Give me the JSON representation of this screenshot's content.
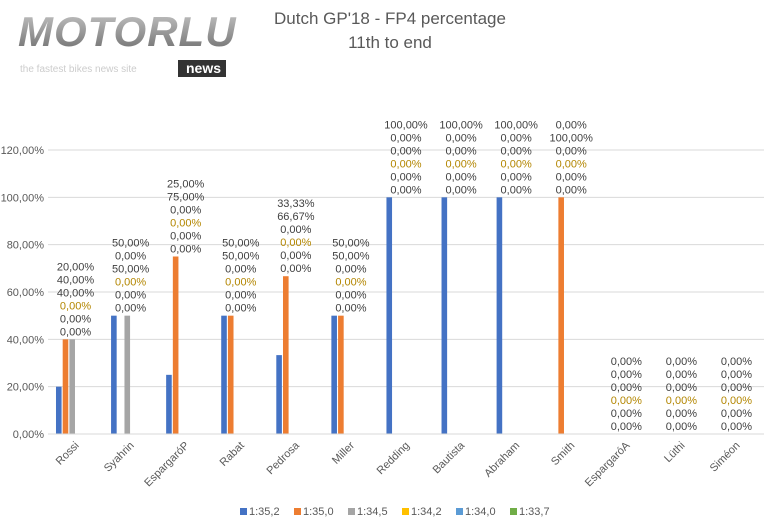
{
  "logo": {
    "text": "MOTORLU",
    "badge": "news",
    "tagline": "the fastest bikes news site"
  },
  "chart_data": {
    "type": "bar",
    "title": "Dutch GP'18 - FP4 percentage",
    "subtitle": "11th to end",
    "xlabel": "",
    "ylabel": "",
    "ylim": [
      0,
      120
    ],
    "yticks": [
      "0,00%",
      "20,00%",
      "40,00%",
      "60,00%",
      "80,00%",
      "100,00%",
      "120,00%"
    ],
    "grid": true,
    "legend": "bottom",
    "categories": [
      "Rossi",
      "Syahrin",
      "EspargaróP",
      "Rabat",
      "Pedrosa",
      "Miller",
      "Redding",
      "Bautista",
      "Abraham",
      "Smith",
      "EspargaróA",
      "Lüthi",
      "Siméon"
    ],
    "series": [
      {
        "name": "1:35,2",
        "color": "#4472C4",
        "values": [
          20,
          50,
          25,
          50,
          33.33,
          50,
          100,
          100,
          100,
          0,
          0,
          0,
          0
        ]
      },
      {
        "name": "1:35,0",
        "color": "#ED7D31",
        "values": [
          40,
          0,
          75,
          50,
          66.67,
          50,
          0,
          0,
          0,
          100,
          0,
          0,
          0
        ]
      },
      {
        "name": "1:34,5",
        "color": "#A5A5A5",
        "values": [
          40,
          50,
          0,
          0,
          0,
          0,
          0,
          0,
          0,
          0,
          0,
          0,
          0
        ]
      },
      {
        "name": "1:34,2",
        "color": "#FFC000",
        "values": [
          0,
          0,
          0,
          0,
          0,
          0,
          0,
          0,
          0,
          0,
          0,
          0,
          0
        ]
      },
      {
        "name": "1:34,0",
        "color": "#5B9BD5",
        "values": [
          0,
          0,
          0,
          0,
          0,
          0,
          0,
          0,
          0,
          0,
          0,
          0,
          0
        ]
      },
      {
        "name": "1:33,7",
        "color": "#70AD47",
        "values": [
          0,
          0,
          0,
          0,
          0,
          0,
          0,
          0,
          0,
          0,
          0,
          0,
          0
        ]
      }
    ]
  }
}
